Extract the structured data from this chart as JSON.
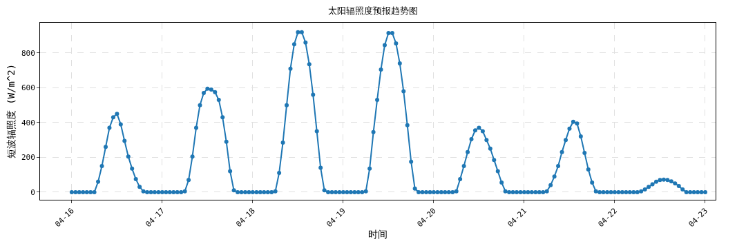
{
  "chart_data": {
    "type": "line",
    "title": "太阳辐照度预报趋势图",
    "xlabel": "时间",
    "ylabel": "短波辐照度 (W/m^2)",
    "x": [
      "--04-16T00:00",
      "--04-16T01:00",
      "--04-16T02:00",
      "--04-16T03:00",
      "--04-16T04:00",
      "--04-16T05:00",
      "--04-16T06:00",
      "--04-16T07:00",
      "--04-16T08:00",
      "--04-16T09:00",
      "--04-16T10:00",
      "--04-16T11:00",
      "--04-16T12:00",
      "--04-16T13:00",
      "--04-16T14:00",
      "--04-16T15:00",
      "--04-16T16:00",
      "--04-16T17:00",
      "--04-16T18:00",
      "--04-16T19:00",
      "--04-16T20:00",
      "--04-16T21:00",
      "--04-16T22:00",
      "--04-16T23:00",
      "--04-17T00:00",
      "--04-17T01:00",
      "--04-17T02:00",
      "--04-17T03:00",
      "--04-17T04:00",
      "--04-17T05:00",
      "--04-17T06:00",
      "--04-17T07:00",
      "--04-17T08:00",
      "--04-17T09:00",
      "--04-17T10:00",
      "--04-17T11:00",
      "--04-17T12:00",
      "--04-17T13:00",
      "--04-17T14:00",
      "--04-17T15:00",
      "--04-17T16:00",
      "--04-17T17:00",
      "--04-17T18:00",
      "--04-17T19:00",
      "--04-17T20:00",
      "--04-17T21:00",
      "--04-17T22:00",
      "--04-17T23:00",
      "--04-18T00:00",
      "--04-18T01:00",
      "--04-18T02:00",
      "--04-18T03:00",
      "--04-18T04:00",
      "--04-18T05:00",
      "--04-18T06:00",
      "--04-18T07:00",
      "--04-18T08:00",
      "--04-18T09:00",
      "--04-18T10:00",
      "--04-18T11:00",
      "--04-18T12:00",
      "--04-18T13:00",
      "--04-18T14:00",
      "--04-18T15:00",
      "--04-18T16:00",
      "--04-18T17:00",
      "--04-18T18:00",
      "--04-18T19:00",
      "--04-18T20:00",
      "--04-18T21:00",
      "--04-18T22:00",
      "--04-18T23:00",
      "--04-19T00:00",
      "--04-19T01:00",
      "--04-19T02:00",
      "--04-19T03:00",
      "--04-19T04:00",
      "--04-19T05:00",
      "--04-19T06:00",
      "--04-19T07:00",
      "--04-19T08:00",
      "--04-19T09:00",
      "--04-19T10:00",
      "--04-19T11:00",
      "--04-19T12:00",
      "--04-19T13:00",
      "--04-19T14:00",
      "--04-19T15:00",
      "--04-19T16:00",
      "--04-19T17:00",
      "--04-19T18:00",
      "--04-19T19:00",
      "--04-19T20:00",
      "--04-19T21:00",
      "--04-19T22:00",
      "--04-19T23:00",
      "--04-20T00:00",
      "--04-20T01:00",
      "--04-20T02:00",
      "--04-20T03:00",
      "--04-20T04:00",
      "--04-20T05:00",
      "--04-20T06:00",
      "--04-20T07:00",
      "--04-20T08:00",
      "--04-20T09:00",
      "--04-20T10:00",
      "--04-20T11:00",
      "--04-20T12:00",
      "--04-20T13:00",
      "--04-20T14:00",
      "--04-20T15:00",
      "--04-20T16:00",
      "--04-20T17:00",
      "--04-20T18:00",
      "--04-20T19:00",
      "--04-20T20:00",
      "--04-20T21:00",
      "--04-20T22:00",
      "--04-20T23:00",
      "--04-21T00:00",
      "--04-21T01:00",
      "--04-21T02:00",
      "--04-21T03:00",
      "--04-21T04:00",
      "--04-21T05:00",
      "--04-21T06:00",
      "--04-21T07:00",
      "--04-21T08:00",
      "--04-21T09:00",
      "--04-21T10:00",
      "--04-21T11:00",
      "--04-21T12:00",
      "--04-21T13:00",
      "--04-21T14:00",
      "--04-21T15:00",
      "--04-21T16:00",
      "--04-21T17:00",
      "--04-21T18:00",
      "--04-21T19:00",
      "--04-21T20:00",
      "--04-21T21:00",
      "--04-21T22:00",
      "--04-21T23:00",
      "--04-22T00:00",
      "--04-22T01:00",
      "--04-22T02:00",
      "--04-22T03:00",
      "--04-22T04:00",
      "--04-22T05:00",
      "--04-22T06:00",
      "--04-22T07:00",
      "--04-22T08:00",
      "--04-22T09:00",
      "--04-22T10:00",
      "--04-22T11:00",
      "--04-22T12:00",
      "--04-22T13:00",
      "--04-22T14:00",
      "--04-22T15:00",
      "--04-22T16:00",
      "--04-22T17:00",
      "--04-22T18:00",
      "--04-22T19:00",
      "--04-22T20:00",
      "--04-22T21:00",
      "--04-22T22:00",
      "--04-22T23:00",
      "--04-23T00:00"
    ],
    "series": [
      {
        "color": "#1f77b4",
        "values": [
          0,
          0,
          0,
          0,
          0,
          0,
          0,
          60,
          150,
          260,
          370,
          430,
          450,
          390,
          295,
          205,
          135,
          75,
          30,
          5,
          0,
          0,
          0,
          0,
          0,
          0,
          0,
          0,
          0,
          0,
          5,
          70,
          205,
          370,
          500,
          570,
          595,
          590,
          575,
          530,
          430,
          290,
          120,
          10,
          0,
          0,
          0,
          0,
          0,
          0,
          0,
          0,
          0,
          0,
          5,
          110,
          285,
          500,
          710,
          850,
          920,
          920,
          860,
          735,
          560,
          350,
          140,
          10,
          0,
          0,
          0,
          0,
          0,
          0,
          0,
          0,
          0,
          0,
          5,
          135,
          345,
          530,
          705,
          845,
          915,
          915,
          855,
          740,
          580,
          385,
          175,
          20,
          0,
          0,
          0,
          0,
          0,
          0,
          0,
          0,
          0,
          0,
          5,
          75,
          150,
          230,
          305,
          355,
          370,
          350,
          300,
          250,
          185,
          120,
          55,
          5,
          0,
          0,
          0,
          0,
          0,
          0,
          0,
          0,
          0,
          0,
          5,
          40,
          90,
          150,
          230,
          300,
          365,
          405,
          395,
          320,
          225,
          130,
          55,
          5,
          0,
          0,
          0,
          0,
          0,
          0,
          0,
          0,
          0,
          0,
          0,
          5,
          15,
          30,
          45,
          60,
          70,
          72,
          70,
          62,
          50,
          35,
          15,
          0,
          0,
          0,
          0,
          0,
          0
        ]
      }
    ],
    "xlim": [
      "--04-15T15:36",
      "--04-23T02:45"
    ],
    "xticks": [
      {
        "value": "--04-16",
        "label": "04-16"
      },
      {
        "value": "--04-17",
        "label": "04-17"
      },
      {
        "value": "--04-18",
        "label": "04-18"
      },
      {
        "value": "--04-19",
        "label": "04-19"
      },
      {
        "value": "--04-20",
        "label": "04-20"
      },
      {
        "value": "--04-21",
        "label": "04-21"
      },
      {
        "value": "--04-22",
        "label": "04-22"
      },
      {
        "value": "--04-23",
        "label": "04-23"
      }
    ],
    "ylim": [
      -44,
      974
    ],
    "yticks": [
      0,
      200,
      400,
      600,
      800
    ],
    "grid": true,
    "marker": "circle",
    "line_style": "solid"
  }
}
